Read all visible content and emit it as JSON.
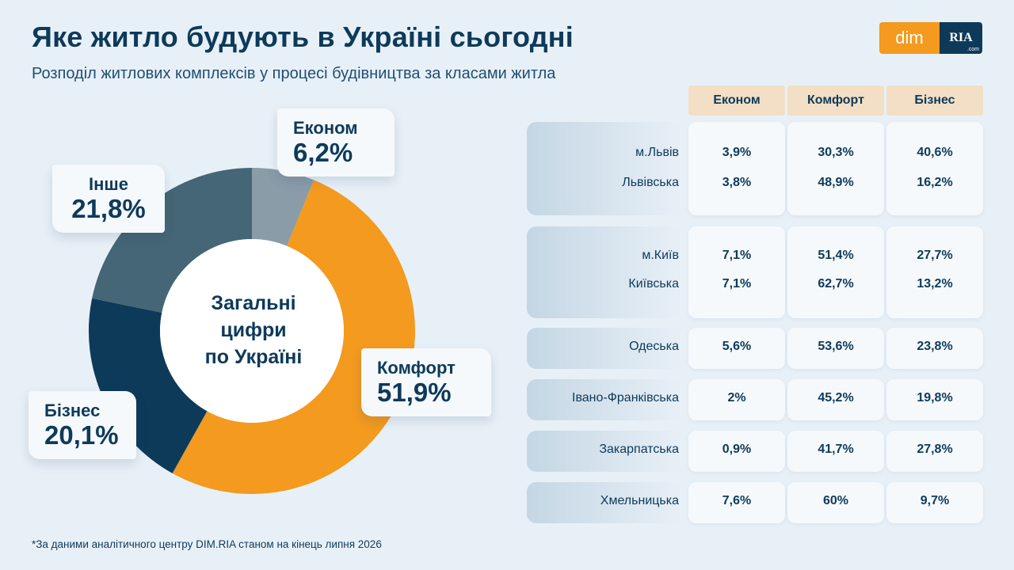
{
  "header": {
    "title": "Яке житло будують в Україні сьогодні",
    "subtitle": "Розподіл житлових комплексів у процесі будівництва за класами житла",
    "logo_left": "dim",
    "logo_right": "RIA",
    "logo_suffix": ".com"
  },
  "chart_data": [
    {
      "type": "pie",
      "title": "",
      "center_label": [
        "Загальні",
        "цифри",
        "по Україні"
      ],
      "slices": [
        {
          "name": "Економ",
          "value": 6.2,
          "label": "6,2%",
          "color": "#8a9ca8"
        },
        {
          "name": "Комфорт",
          "value": 51.9,
          "label": "51,9%",
          "color": "#f39a1f"
        },
        {
          "name": "Бізнес",
          "value": 20.1,
          "label": "20,1%",
          "color": "#0e3a5a"
        },
        {
          "name": "Інше",
          "value": 21.8,
          "label": "21,8%",
          "color": "#456676"
        }
      ]
    },
    {
      "type": "table",
      "columns": [
        "Економ",
        "Комфорт",
        "Бізнес"
      ],
      "groups": [
        {
          "rows": [
            {
              "region": "м.Львів",
              "values": [
                "3,9%",
                "30,3%",
                "40,6%"
              ]
            },
            {
              "region": "Львівська",
              "values": [
                "3,8%",
                "48,9%",
                "16,2%"
              ]
            }
          ]
        },
        {
          "rows": [
            {
              "region": "м.Київ",
              "values": [
                "7,1%",
                "51,4%",
                "27,7%"
              ]
            },
            {
              "region": "Київська",
              "values": [
                "7,1%",
                "62,7%",
                "13,2%"
              ]
            }
          ]
        },
        {
          "rows": [
            {
              "region": "Одеська",
              "values": [
                "5,6%",
                "53,6%",
                "23,8%"
              ]
            }
          ]
        },
        {
          "rows": [
            {
              "region": "Івано-Франківська",
              "values": [
                "2%",
                "45,2%",
                "19,8%"
              ]
            }
          ]
        },
        {
          "rows": [
            {
              "region": "Закарпатська",
              "values": [
                "0,9%",
                "41,7%",
                "27,8%"
              ]
            }
          ]
        },
        {
          "rows": [
            {
              "region": "Хмельницька",
              "values": [
                "7,6%",
                "60%",
                "9,7%"
              ]
            }
          ]
        }
      ]
    }
  ],
  "footnote": "*За даними аналітичного центру DIM.RIA станом на кінець липня 2026"
}
